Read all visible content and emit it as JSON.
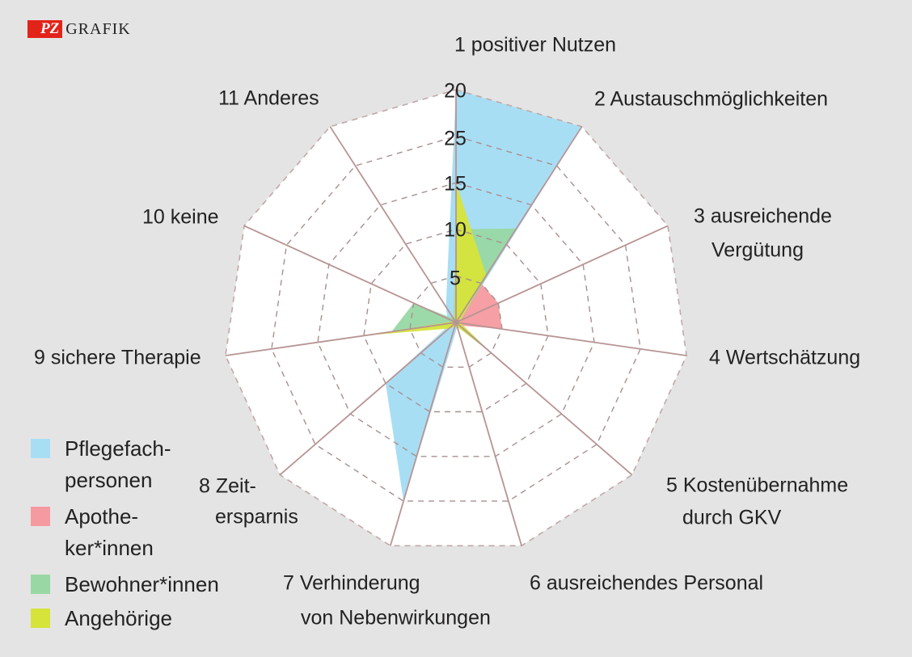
{
  "brand": {
    "logo": "PZ",
    "word": "GRAFIK"
  },
  "chart_data": {
    "type": "radar",
    "axes": [
      [
        "1 positiver Nutzen"
      ],
      [
        "2 Austauschmöglichkeiten"
      ],
      [
        "3 ausreichende",
        "Vergütung"
      ],
      [
        "4 Wertschätzung"
      ],
      [
        "5 Kostenübernahme",
        "durch GKV"
      ],
      [
        "6 ausreichendes Personal"
      ],
      [
        "7 Verhinderung",
        "von Nebenwirkungen"
      ],
      [
        "8 Zeit-",
        "ersparnis"
      ],
      [
        "9 sichere Therapie"
      ],
      [
        "10 keine"
      ],
      [
        "11 Anderes"
      ]
    ],
    "ticks": [
      "5",
      "10",
      "15",
      "25",
      "20"
    ],
    "r_max": 25,
    "series": [
      {
        "name": "Pflegefach-personen",
        "label_lines": [
          "Pflegefach-",
          "personen"
        ],
        "color": "#a8def4",
        "values": [
          25,
          25,
          0.5,
          0.5,
          5.5,
          0.5,
          20,
          10,
          0.5,
          1,
          2
        ]
      },
      {
        "name": "Apothe-ker*innen",
        "label_lines": [
          "Apothe-",
          "ker*innen"
        ],
        "color": "#f59aa0",
        "values": [
          6,
          5,
          5,
          5,
          0.5,
          0.3,
          0.3,
          0.3,
          0.3,
          0.3,
          0.3
        ]
      },
      {
        "name": "Bewohner*innen",
        "label_lines": [
          "Bewohner*innen"
        ],
        "color": "#98d8a4",
        "values": [
          10,
          12,
          0.5,
          0.5,
          0.5,
          0.5,
          0.5,
          0.5,
          7,
          5,
          0.5
        ]
      },
      {
        "name": "Angehörige",
        "label_lines": [
          "Angehörige"
        ],
        "color": "#d6e43a",
        "values": [
          15,
          6,
          0.5,
          0.5,
          5,
          0.5,
          0.5,
          1,
          10,
          0.3,
          0.3
        ]
      }
    ]
  }
}
